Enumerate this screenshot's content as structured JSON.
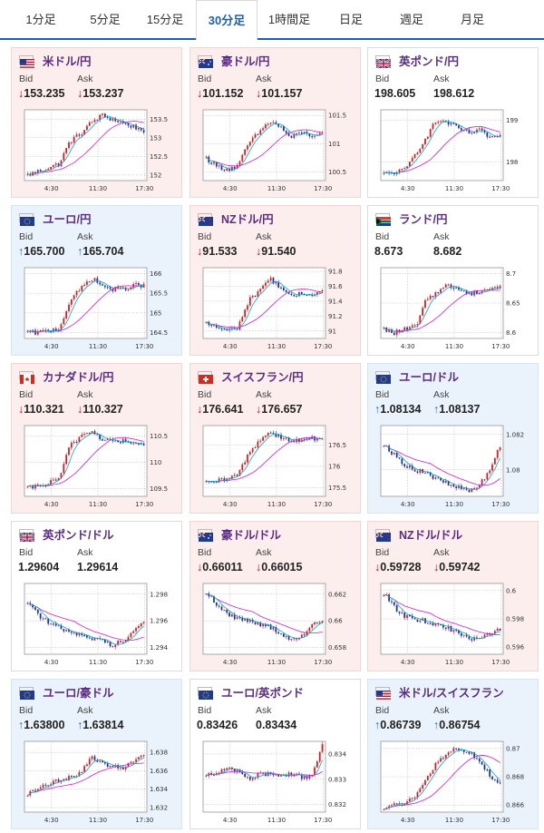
{
  "tabs": [
    {
      "label": "1分足",
      "active": false
    },
    {
      "label": "5分足",
      "active": false
    },
    {
      "label": "15分足",
      "active": false
    },
    {
      "label": "30分足",
      "active": true
    },
    {
      "label": "1時間足",
      "active": false
    },
    {
      "label": "日足",
      "active": false
    },
    {
      "label": "週足",
      "active": false
    },
    {
      "label": "月足",
      "active": false
    }
  ],
  "labels": {
    "bid": "Bid",
    "ask": "Ask"
  },
  "colors": {
    "down_bg": "#fdeeee",
    "up_bg": "#eaf3fb",
    "bull": "#e8141b",
    "bear": "#1a2f9c",
    "ma_short": "#00a7d6",
    "ma_long": "#d61ad6"
  },
  "cards": [
    {
      "pair": "米ドル/円",
      "flag": "us-flag-icon",
      "dir": "down",
      "bid": "153.235",
      "ask": "153.237",
      "chart_data": {
        "type": "candlestick",
        "x_ticks": [
          "4:30",
          "11:30",
          "17:30"
        ],
        "y_ticks": [
          "153.5",
          "153",
          "152.5",
          "152"
        ],
        "ylim": [
          151.85,
          153.75
        ],
        "trend": [
          152.0,
          152.1,
          152.2,
          152.3,
          152.9,
          153.1,
          153.4,
          153.6,
          153.5,
          153.4,
          153.3,
          153.2
        ]
      }
    },
    {
      "pair": "豪ドル/円",
      "flag": "au-flag-icon",
      "dir": "down",
      "bid": "101.152",
      "ask": "101.157",
      "chart_data": {
        "type": "candlestick",
        "x_ticks": [
          "4:30",
          "11:30",
          "17:30"
        ],
        "y_ticks": [
          "101.5",
          "101",
          "100.5"
        ],
        "ylim": [
          100.35,
          101.6
        ],
        "trend": [
          100.75,
          100.6,
          100.55,
          100.6,
          101.0,
          101.2,
          101.4,
          101.3,
          101.1,
          101.2,
          101.15,
          101.15
        ]
      }
    },
    {
      "pair": "英ポンド/円",
      "flag": "gb-flag-icon",
      "dir": "flat",
      "bid": "198.605",
      "ask": "198.612",
      "chart_data": {
        "type": "candlestick",
        "x_ticks": [
          "4:30",
          "11:30",
          "17:30"
        ],
        "y_ticks": [
          "199",
          "198"
        ],
        "ylim": [
          197.55,
          199.25
        ],
        "trend": [
          197.7,
          197.75,
          197.8,
          198.2,
          198.6,
          199.0,
          198.95,
          198.8,
          198.7,
          198.75,
          198.6,
          198.6
        ]
      }
    },
    {
      "pair": "ユーロ/円",
      "flag": "eu-flag-icon",
      "dir": "up",
      "bid": "165.700",
      "ask": "165.704",
      "chart_data": {
        "type": "candlestick",
        "x_ticks": [
          "4:30",
          "11:30",
          "17:30"
        ],
        "y_ticks": [
          "166",
          "165.5",
          "165",
          "164.5"
        ],
        "ylim": [
          164.35,
          166.15
        ],
        "trend": [
          164.5,
          164.5,
          164.55,
          164.6,
          165.3,
          165.6,
          165.9,
          165.7,
          165.6,
          165.6,
          165.7,
          165.7
        ]
      }
    },
    {
      "pair": "NZドル/円",
      "flag": "nz-flag-icon",
      "dir": "down",
      "bid": "91.533",
      "ask": "91.540",
      "chart_data": {
        "type": "candlestick",
        "x_ticks": [
          "4:30",
          "11:30",
          "17:30"
        ],
        "y_ticks": [
          "91.8",
          "91.6",
          "91.4",
          "91.2",
          "91"
        ],
        "ylim": [
          90.9,
          91.85
        ],
        "trend": [
          91.1,
          91.05,
          91.0,
          91.05,
          91.4,
          91.55,
          91.7,
          91.6,
          91.45,
          91.5,
          91.5,
          91.53
        ]
      }
    },
    {
      "pair": "ランド/円",
      "flag": "za-flag-icon",
      "dir": "flat",
      "bid": "8.673",
      "ask": "8.682",
      "chart_data": {
        "type": "candlestick",
        "x_ticks": [
          "4:30",
          "11:30",
          "17:30"
        ],
        "y_ticks": [
          "8.7",
          "8.65",
          "8.6"
        ],
        "ylim": [
          8.59,
          8.71
        ],
        "trend": [
          8.605,
          8.6,
          8.605,
          8.61,
          8.655,
          8.67,
          8.68,
          8.675,
          8.665,
          8.67,
          8.675,
          8.678
        ]
      }
    },
    {
      "pair": "カナダドル/円",
      "flag": "ca-flag-icon",
      "dir": "down",
      "bid": "110.321",
      "ask": "110.327",
      "chart_data": {
        "type": "candlestick",
        "x_ticks": [
          "4:30",
          "11:30",
          "17:30"
        ],
        "y_ticks": [
          "110.5",
          "110",
          "109.5"
        ],
        "ylim": [
          109.35,
          110.7
        ],
        "trend": [
          109.5,
          109.55,
          109.6,
          109.7,
          110.3,
          110.5,
          110.6,
          110.45,
          110.4,
          110.4,
          110.35,
          110.32
        ]
      }
    },
    {
      "pair": "スイスフラン/円",
      "flag": "ch-flag-icon",
      "dir": "down",
      "bid": "176.641",
      "ask": "176.657",
      "chart_data": {
        "type": "candlestick",
        "x_ticks": [
          "4:30",
          "11:30",
          "17:30"
        ],
        "y_ticks": [
          "176.5",
          "176",
          "175.5"
        ],
        "ylim": [
          175.3,
          176.95
        ],
        "trend": [
          175.6,
          175.65,
          175.7,
          175.8,
          176.3,
          176.6,
          176.8,
          176.7,
          176.6,
          176.6,
          176.65,
          176.65
        ]
      }
    },
    {
      "pair": "ユーロ/ドル",
      "flag": "eu-flag-icon",
      "dir": "up",
      "bid": "1.08134",
      "ask": "1.08137",
      "chart_data": {
        "type": "candlestick",
        "x_ticks": [
          "4:30",
          "11:30",
          "17:30"
        ],
        "y_ticks": [
          "1.082",
          "1.08"
        ],
        "ylim": [
          1.0785,
          1.0825
        ],
        "trend": [
          1.0815,
          1.0808,
          1.0803,
          1.08,
          1.0798,
          1.0795,
          1.0792,
          1.079,
          1.0788,
          1.0791,
          1.08,
          1.0813
        ]
      }
    },
    {
      "pair": "英ポンド/ドル",
      "flag": "gb-flag-icon",
      "dir": "flat",
      "bid": "1.29604",
      "ask": "1.29614",
      "chart_data": {
        "type": "candlestick",
        "x_ticks": [
          "4:30",
          "11:30",
          "17:30"
        ],
        "y_ticks": [
          "1.298",
          "1.296",
          "1.294"
        ],
        "ylim": [
          1.2935,
          1.2988
        ],
        "trend": [
          1.2975,
          1.2965,
          1.2958,
          1.2955,
          1.2952,
          1.295,
          1.2947,
          1.2945,
          1.2942,
          1.2945,
          1.2952,
          1.296
        ]
      }
    },
    {
      "pair": "豪ドル/ドル",
      "flag": "au-flag-icon",
      "dir": "down",
      "bid": "0.66011",
      "ask": "0.66015",
      "chart_data": {
        "type": "candlestick",
        "x_ticks": [
          "4:30",
          "11:30",
          "17:30"
        ],
        "y_ticks": [
          "0.662",
          "0.66",
          "0.658"
        ],
        "ylim": [
          0.6575,
          0.6628
        ],
        "trend": [
          0.6622,
          0.6612,
          0.6605,
          0.6602,
          0.66,
          0.6598,
          0.6596,
          0.659,
          0.6585,
          0.6588,
          0.6596,
          0.6601
        ]
      }
    },
    {
      "pair": "NZドル/ドル",
      "flag": "nz-flag-icon",
      "dir": "down",
      "bid": "0.59728",
      "ask": "0.59742",
      "chart_data": {
        "type": "candlestick",
        "x_ticks": [
          "4:30",
          "11:30",
          "17:30"
        ],
        "y_ticks": [
          "0.6",
          "0.598",
          "0.596"
        ],
        "ylim": [
          0.5955,
          0.6005
        ],
        "trend": [
          0.5998,
          0.5988,
          0.5982,
          0.598,
          0.5978,
          0.5976,
          0.5974,
          0.597,
          0.5965,
          0.5966,
          0.597,
          0.5973
        ]
      }
    },
    {
      "pair": "ユーロ/豪ドル",
      "flag": "eu-flag-icon",
      "dir": "up",
      "bid": "1.63800",
      "ask": "1.63814",
      "chart_data": {
        "type": "candlestick",
        "x_ticks": [
          "4:30",
          "11:30",
          "17:30"
        ],
        "y_ticks": [
          "1.638",
          "1.636",
          "1.634",
          "1.632"
        ],
        "ylim": [
          1.6315,
          1.6392
        ],
        "trend": [
          1.6335,
          1.634,
          1.6345,
          1.635,
          1.6352,
          1.6358,
          1.6375,
          1.637,
          1.6365,
          1.6362,
          1.637,
          1.638
        ]
      }
    },
    {
      "pair": "ユーロ/英ポンド",
      "flag": "eu-flag-icon",
      "dir": "flat",
      "bid": "0.83426",
      "ask": "0.83434",
      "chart_data": {
        "type": "candlestick",
        "x_ticks": [
          "4:30",
          "11:30",
          "17:30"
        ],
        "y_ticks": [
          "0.834",
          "0.833",
          "0.832"
        ],
        "ylim": [
          0.8317,
          0.8345
        ],
        "trend": [
          0.8332,
          0.8333,
          0.8334,
          0.8333,
          0.833,
          0.8332,
          0.8332,
          0.8332,
          0.8332,
          0.8331,
          0.8331,
          0.8343
        ]
      }
    },
    {
      "pair": "米ドル/スイスフラン",
      "flag": "us-flag-icon",
      "dir": "up",
      "bid": "0.86739",
      "ask": "0.86754",
      "chart_data": {
        "type": "candlestick",
        "x_ticks": [
          "4:30",
          "11:30",
          "17:30"
        ],
        "y_ticks": [
          "0.87",
          "0.868",
          "0.866"
        ],
        "ylim": [
          0.8655,
          0.8705
        ],
        "trend": [
          0.8658,
          0.866,
          0.8662,
          0.8665,
          0.8678,
          0.869,
          0.8697,
          0.87,
          0.8698,
          0.869,
          0.8682,
          0.8674
        ]
      }
    }
  ]
}
